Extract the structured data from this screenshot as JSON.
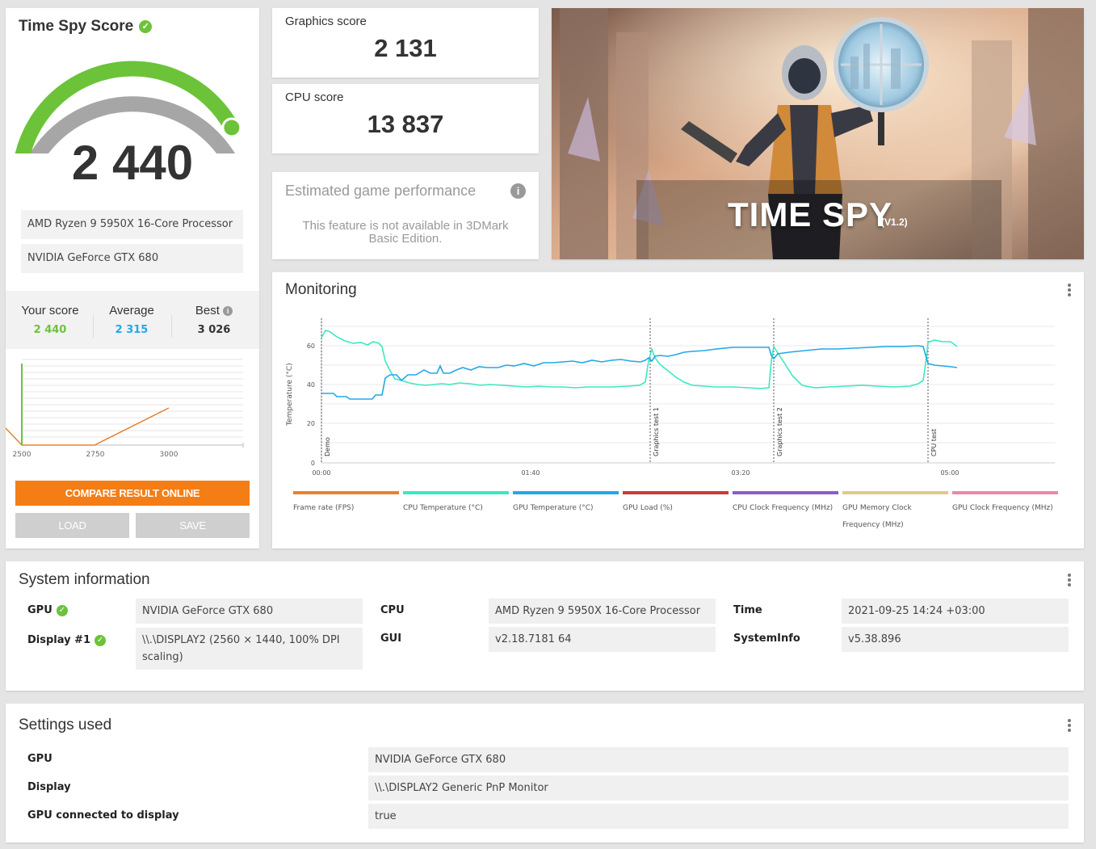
{
  "score_card": {
    "title": "Time Spy Score",
    "score": "2 440",
    "gauge_fraction": 0.81,
    "cpu_name": "AMD Ryzen 9 5950X 16-Core Processor",
    "gpu_name": "NVIDIA GeForce GTX 680",
    "comparison": {
      "your_label": "Your score",
      "your_value": "2 440",
      "avg_label": "Average",
      "avg_value": "2 315",
      "best_label": "Best",
      "best_value": "3 026"
    },
    "mini_chart": {
      "x_ticks": [
        "2500",
        "2750",
        "3000"
      ]
    },
    "compare_button": "COMPARE RESULT ONLINE",
    "load_button": "LOAD",
    "save_button": "SAVE"
  },
  "graphics": {
    "label": "Graphics score",
    "value": "2 131"
  },
  "cpu": {
    "label": "CPU score",
    "value": "13 837"
  },
  "estimated": {
    "title": "Estimated game performance",
    "message": "This feature is not available in 3DMark Basic Edition."
  },
  "hero": {
    "title": "TIME SPY",
    "version": "(V1.2)"
  },
  "monitoring": {
    "title": "Monitoring",
    "y_label": "Temperature (°C)",
    "y_ticks": [
      "0",
      "20",
      "40",
      "60"
    ],
    "x_ticks": [
      "00:00",
      "01:40",
      "03:20",
      "05:00"
    ],
    "markers": [
      "Demo",
      "Graphics test 1",
      "Graphics test 2",
      "CPU test"
    ],
    "legend": [
      {
        "label": "Frame rate (FPS)",
        "color": "#e8822f"
      },
      {
        "label": "CPU Temperature (°C)",
        "color": "#3de8c0"
      },
      {
        "label": "GPU Temperature (°C)",
        "color": "#22a8e8"
      },
      {
        "label": "GPU Load (%)",
        "color": "#c83a3a"
      },
      {
        "label": "CPU Clock Frequency (MHz)",
        "color": "#8e5ac8"
      },
      {
        "label": "GPU Memory Clock Frequency (MHz)",
        "color": "#e0c98a"
      },
      {
        "label": "GPU Clock Frequency (MHz)",
        "color": "#e889a8"
      }
    ]
  },
  "system_info": {
    "title": "System information",
    "gpu_label": "GPU",
    "gpu_value": "NVIDIA GeForce GTX 680",
    "display_label": "Display #1",
    "display_value": "\\\\.\\DISPLAY2 (2560 × 1440, 100% DPI scaling)",
    "cpu_label": "CPU",
    "cpu_value": "AMD Ryzen 9 5950X 16-Core Processor",
    "gui_label": "GUI",
    "gui_value": "v2.18.7181 64",
    "time_label": "Time",
    "time_value": "2021-09-25 14:24 +03:00",
    "sysinfo_label": "SystemInfo",
    "sysinfo_value": "v5.38.896"
  },
  "settings": {
    "title": "Settings used",
    "gpu_label": "GPU",
    "gpu_value": "NVIDIA GeForce GTX 680",
    "display_label": "Display",
    "display_value": "\\\\.\\DISPLAY2 Generic PnP Monitor",
    "connected_label": "GPU connected to display",
    "connected_value": "true"
  }
}
